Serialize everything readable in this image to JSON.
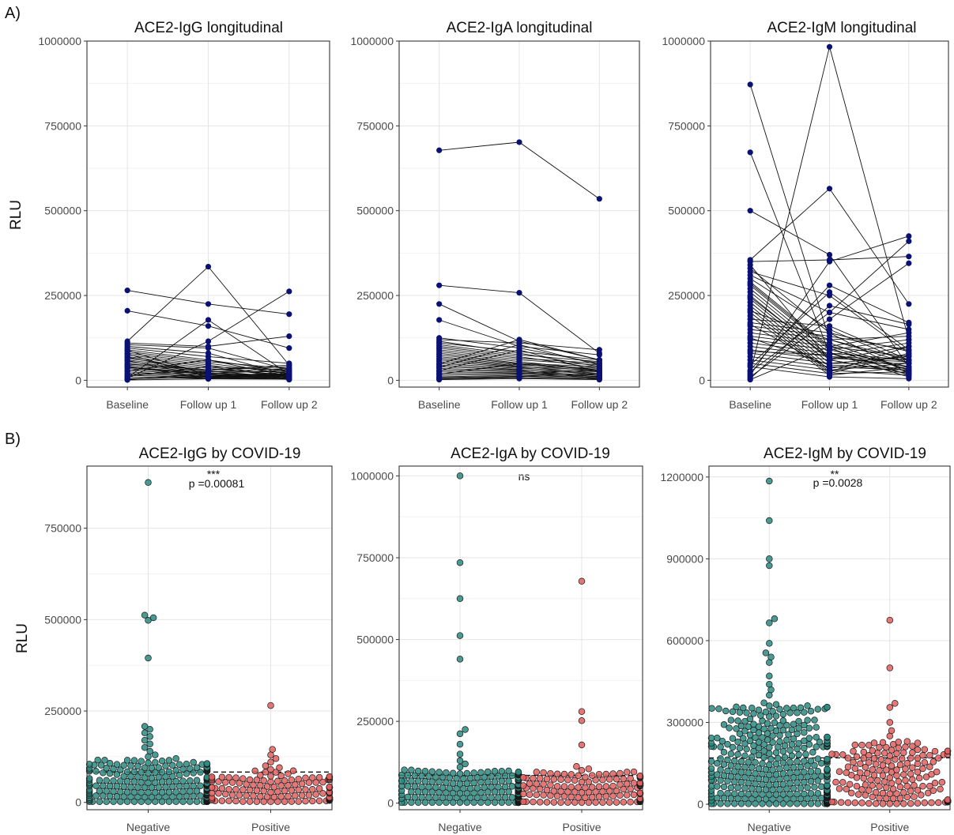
{
  "figure": {
    "panel_labels": [
      "A)",
      "B)"
    ],
    "ylabel": "RLU"
  },
  "chart_data": [
    {
      "type": "line",
      "title": "ACE2-IgG longitudinal",
      "ylabel": "RLU",
      "categories": [
        "Baseline",
        "Follow up 1",
        "Follow up 2"
      ],
      "ylim": [
        -20000,
        1000000
      ],
      "yticks": [
        0,
        250000,
        500000,
        750000,
        1000000
      ],
      "yticklabels": [
        "0",
        "250000",
        "500000",
        "750000",
        "1000000"
      ],
      "grid": true,
      "color": "#0a1172",
      "trajectories": [
        [
          265000,
          225000,
          195000
        ],
        [
          205000,
          160000,
          95000
        ],
        [
          115000,
          335000,
          45000
        ],
        [
          110000,
          100000,
          130000
        ],
        [
          105000,
          95000,
          30000
        ],
        [
          100000,
          80000,
          15000
        ],
        [
          95000,
          70000,
          50000
        ],
        [
          90000,
          60000,
          25000
        ],
        [
          85000,
          55000,
          35000
        ],
        [
          80000,
          50000,
          20000
        ],
        [
          75000,
          45000,
          10000
        ],
        [
          70000,
          40000,
          30000
        ],
        [
          65000,
          35000,
          15000
        ],
        [
          60000,
          30000,
          40000
        ],
        [
          55000,
          28000,
          8000
        ],
        [
          50000,
          25000,
          25000
        ],
        [
          45000,
          22000,
          12000
        ],
        [
          40000,
          20000,
          30000
        ],
        [
          35000,
          18000,
          5000
        ],
        [
          30000,
          15000,
          20000
        ],
        [
          25000,
          12000,
          10000
        ],
        [
          20000,
          10000,
          15000
        ],
        [
          15000,
          8000,
          5000
        ],
        [
          10000,
          5000,
          20000
        ],
        [
          8000,
          178000,
          18000
        ],
        [
          6000,
          115000,
          262000
        ],
        [
          5000,
          8000,
          10000
        ],
        [
          3000,
          12000,
          5000
        ],
        [
          2000,
          20000,
          15000
        ],
        [
          1000,
          4000,
          3000
        ],
        [
          12000,
          40000,
          8000
        ],
        [
          18000,
          25000,
          35000
        ],
        [
          28000,
          60000,
          12000
        ],
        [
          38000,
          18000,
          2000
        ],
        [
          48000,
          30000,
          45000
        ],
        [
          58000,
          12000,
          18000
        ],
        [
          68000,
          22000,
          6000
        ],
        [
          78000,
          8000,
          25000
        ],
        [
          88000,
          15000,
          10000
        ],
        [
          42000,
          6000,
          4000
        ]
      ]
    },
    {
      "type": "line",
      "title": "ACE2-IgA longitudinal",
      "ylabel": "",
      "categories": [
        "Baseline",
        "Follow up 1",
        "Follow up 2"
      ],
      "ylim": [
        -20000,
        1000000
      ],
      "yticks": [
        0,
        250000,
        500000,
        750000,
        1000000
      ],
      "yticklabels": [
        "0",
        "250000",
        "500000",
        "750000",
        "1000000"
      ],
      "grid": true,
      "color": "#0a1172",
      "trajectories": [
        [
          678000,
          702000,
          535000
        ],
        [
          280000,
          258000,
          80000
        ],
        [
          225000,
          115000,
          60000
        ],
        [
          178000,
          100000,
          75000
        ],
        [
          125000,
          95000,
          50000
        ],
        [
          120000,
          110000,
          90000
        ],
        [
          115000,
          80000,
          40000
        ],
        [
          110000,
          85000,
          60000
        ],
        [
          105000,
          75000,
          55000
        ],
        [
          100000,
          70000,
          35000
        ],
        [
          95000,
          65000,
          50000
        ],
        [
          90000,
          60000,
          45000
        ],
        [
          85000,
          55000,
          30000
        ],
        [
          80000,
          50000,
          40000
        ],
        [
          75000,
          48000,
          25000
        ],
        [
          70000,
          45000,
          35000
        ],
        [
          65000,
          42000,
          20000
        ],
        [
          60000,
          40000,
          30000
        ],
        [
          55000,
          38000,
          15000
        ],
        [
          50000,
          35000,
          25000
        ],
        [
          45000,
          32000,
          10000
        ],
        [
          40000,
          30000,
          20000
        ],
        [
          35000,
          28000,
          5000
        ],
        [
          30000,
          25000,
          15000
        ],
        [
          25000,
          22000,
          10000
        ],
        [
          20000,
          20000,
          30000
        ],
        [
          15000,
          18000,
          12000
        ],
        [
          10000,
          15000,
          8000
        ],
        [
          8000,
          12000,
          5000
        ],
        [
          5000,
          10000,
          20000
        ],
        [
          3000,
          8000,
          3000
        ],
        [
          2000,
          5000,
          2000
        ],
        [
          48000,
          120000,
          60000
        ],
        [
          38000,
          105000,
          45000
        ],
        [
          28000,
          90000,
          25000
        ],
        [
          18000,
          50000,
          30000
        ]
      ]
    },
    {
      "type": "line",
      "title": "ACE2-IgM longitudinal",
      "ylabel": "",
      "categories": [
        "Baseline",
        "Follow up 1",
        "Follow up 2"
      ],
      "ylim": [
        -20000,
        1000000
      ],
      "yticks": [
        0,
        250000,
        500000,
        750000,
        1000000
      ],
      "yticklabels": [
        "0",
        "250000",
        "500000",
        "750000",
        "1000000"
      ],
      "grid": true,
      "color": "#0a1172",
      "trajectories": [
        [
          872000,
          120000,
          60000
        ],
        [
          672000,
          80000,
          25000
        ],
        [
          500000,
          370000,
          40000
        ],
        [
          355000,
          565000,
          225000
        ],
        [
          350000,
          355000,
          365000
        ],
        [
          340000,
          60000,
          100000
        ],
        [
          320000,
          250000,
          80000
        ],
        [
          310000,
          200000,
          150000
        ],
        [
          300000,
          150000,
          50000
        ],
        [
          290000,
          100000,
          30000
        ],
        [
          280000,
          90000,
          120000
        ],
        [
          270000,
          80000,
          60000
        ],
        [
          260000,
          70000,
          40000
        ],
        [
          250000,
          60000,
          20000
        ],
        [
          240000,
          50000,
          70000
        ],
        [
          230000,
          40000,
          30000
        ],
        [
          220000,
          30000,
          50000
        ],
        [
          210000,
          25000,
          100000
        ],
        [
          200000,
          20000,
          80000
        ],
        [
          190000,
          15000,
          40000
        ],
        [
          180000,
          160000,
          60000
        ],
        [
          170000,
          140000,
          20000
        ],
        [
          160000,
          130000,
          90000
        ],
        [
          150000,
          120000,
          50000
        ],
        [
          140000,
          110000,
          30000
        ],
        [
          130000,
          100000,
          70000
        ],
        [
          120000,
          90000,
          40000
        ],
        [
          110000,
          80000,
          10000
        ],
        [
          100000,
          70000,
          60000
        ],
        [
          90000,
          60000,
          20000
        ],
        [
          80000,
          50000,
          50000
        ],
        [
          70000,
          40000,
          30000
        ],
        [
          60000,
          30000,
          15000
        ],
        [
          50000,
          20000,
          25000
        ],
        [
          40000,
          10000,
          5000
        ],
        [
          30000,
          280000,
          170000
        ],
        [
          25000,
          200000,
          410000
        ],
        [
          20000,
          983000,
          120000
        ],
        [
          15000,
          350000,
          425000
        ],
        [
          10000,
          180000,
          345000
        ],
        [
          5000,
          220000,
          165000
        ],
        [
          2000,
          100000,
          140000
        ],
        [
          45000,
          260000,
          90000
        ],
        [
          85000,
          75000,
          110000
        ],
        [
          125000,
          45000,
          35000
        ],
        [
          165000,
          35000,
          75000
        ],
        [
          205000,
          120000,
          130000
        ],
        [
          245000,
          65000,
          55000
        ],
        [
          285000,
          95000,
          15000
        ],
        [
          330000,
          140000,
          85000
        ]
      ]
    },
    {
      "type": "scatter",
      "subtype": "beeswarm",
      "title": "ACE2-IgG by COVID-19",
      "ylabel": "RLU",
      "categories": [
        "Negative",
        "Positive"
      ],
      "ylim": [
        -20000,
        920000
      ],
      "yticks": [
        0,
        250000,
        500000,
        750000
      ],
      "yticklabels": [
        "0",
        "250000",
        "500000",
        "750000"
      ],
      "grid": true,
      "threshold": 83000,
      "annotation": {
        "stars": "***",
        "text": "p =0.00081"
      },
      "colors": {
        "Negative": "#2a8a80",
        "Positive": "#e0605f"
      },
      "outliers": {
        "Negative": [
          875000,
          512000,
          505000,
          498000,
          395000,
          208000,
          200000,
          190000,
          180000,
          170000,
          160000,
          150000,
          140000,
          130000,
          125000,
          120000
        ],
        "Positive": [
          265000,
          145000,
          130000,
          120000,
          110000,
          100000,
          95000,
          90000
        ]
      },
      "bulk": {
        "Negative": {
          "n": 420,
          "max": 115000,
          "shape": 2.6
        },
        "Positive": {
          "n": 140,
          "max": 85000,
          "shape": 1.7
        }
      }
    },
    {
      "type": "scatter",
      "subtype": "beeswarm",
      "title": "ACE2-IgA by COVID-19",
      "ylabel": "",
      "categories": [
        "Negative",
        "Positive"
      ],
      "ylim": [
        -20000,
        1030000
      ],
      "yticks": [
        0,
        250000,
        500000,
        750000,
        1000000
      ],
      "yticklabels": [
        "0",
        "250000",
        "500000",
        "750000",
        "1000000"
      ],
      "grid": true,
      "threshold": 85000,
      "annotation": {
        "stars": "",
        "text": "ns"
      },
      "colors": {
        "Negative": "#2a8a80",
        "Positive": "#e0605f"
      },
      "outliers": {
        "Negative": [
          1000000,
          735000,
          625000,
          512000,
          440000,
          225000,
          212000,
          180000,
          150000,
          130000,
          120000,
          110000
        ],
        "Positive": [
          678000,
          280000,
          252000,
          178000,
          112000,
          105000,
          100000
        ]
      },
      "bulk": {
        "Negative": {
          "n": 400,
          "max": 100000,
          "shape": 2.3
        },
        "Positive": {
          "n": 150,
          "max": 95000,
          "shape": 1.6
        }
      }
    },
    {
      "type": "scatter",
      "subtype": "beeswarm",
      "title": "ACE2-IgM by COVID-19",
      "ylabel": "",
      "categories": [
        "Negative",
        "Positive"
      ],
      "ylim": [
        -20000,
        1240000
      ],
      "yticks": [
        0,
        300000,
        600000,
        900000,
        1200000
      ],
      "yticklabels": [
        "0",
        "300000",
        "600000",
        "900000",
        "1200000"
      ],
      "grid": true,
      "threshold": 170000,
      "annotation": {
        "stars": "**",
        "text": "p =0.0028"
      },
      "colors": {
        "Negative": "#2a8a80",
        "Positive": "#e0605f"
      },
      "outliers": {
        "Negative": [
          1185000,
          1040000,
          900000,
          875000,
          680000,
          665000,
          590000,
          555000,
          540000,
          520000,
          470000,
          440000,
          420000,
          400000
        ],
        "Positive": [
          675000,
          500000,
          370000,
          355000,
          300000,
          270000,
          250000
        ]
      },
      "bulk": {
        "Negative": {
          "n": 520,
          "max": 370000,
          "shape": 2.5
        },
        "Positive": {
          "n": 170,
          "max": 230000,
          "shape": 1.6
        }
      }
    }
  ]
}
